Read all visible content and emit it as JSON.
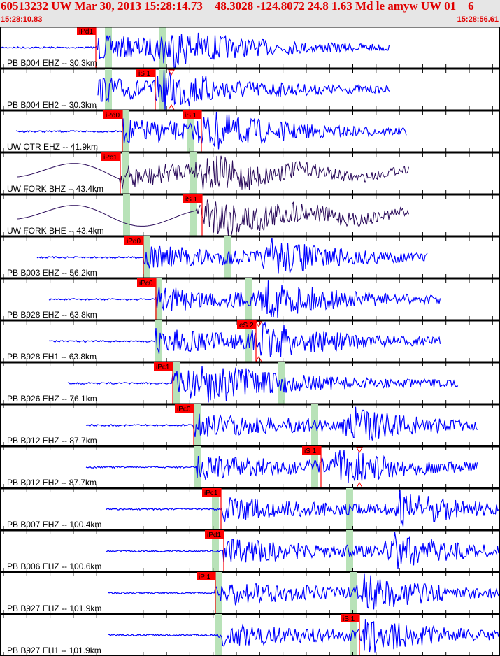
{
  "header": {
    "title": "60513232 UW Mar 30, 2013 15:28:14.73    48.3028 -124.8072 24.8 1.63 Md le amyw UW 01    6",
    "start_time": "15:28:10.83",
    "end_time": "15:28:56.61"
  },
  "colors": {
    "header_bg": "#e6e6e6",
    "header_text": "#e00000",
    "trace_short_period": "#0000ff",
    "trace_broadband": "#2a0a5a",
    "pick": "#ff0000",
    "theoretical_window": "#b8e2b8",
    "divider": "#000000"
  },
  "channels": [
    {
      "label": "PB B004 EHZ -- 30.3km",
      "pick": "iPd1"
    },
    {
      "label": "PB B004 EH2 -- 30.3km",
      "pick": "iS 1"
    },
    {
      "label": "UW OTR EHZ -- 41.9km",
      "pick": "iPd0",
      "pick2": "iS 1"
    },
    {
      "label": "UW FORK BHZ -- 43.4km",
      "pick": "iPc1"
    },
    {
      "label": "UW FORK BHE -- 43.4km",
      "pick": "iS 1"
    },
    {
      "label": "PB B003 EHZ -- 56.2km",
      "pick": "iPd0"
    },
    {
      "label": "PB B928 EHZ -- 63.8km",
      "pick": "iPc0"
    },
    {
      "label": "PB B928 EH1 -- 63.8km",
      "pick": "eS 2"
    },
    {
      "label": "PB B926 EHZ -- 76.1km",
      "pick": "iPc1"
    },
    {
      "label": "PB B012 EHZ -- 87.7km",
      "pick": "iPc0"
    },
    {
      "label": "PB B012 EH2 -- 87.7km",
      "pick": "iS 1"
    },
    {
      "label": "PB B007 EHZ -- 100.4km",
      "pick": "iPc1"
    },
    {
      "label": "PB B006 EHZ -- 100.6km",
      "pick": "iPd1"
    },
    {
      "label": "PB B927 EHZ -- 101.9km",
      "pick": "iP 1"
    },
    {
      "label": "PB B927 EH1 -- 101.9km",
      "pick": "iS 1"
    }
  ]
}
